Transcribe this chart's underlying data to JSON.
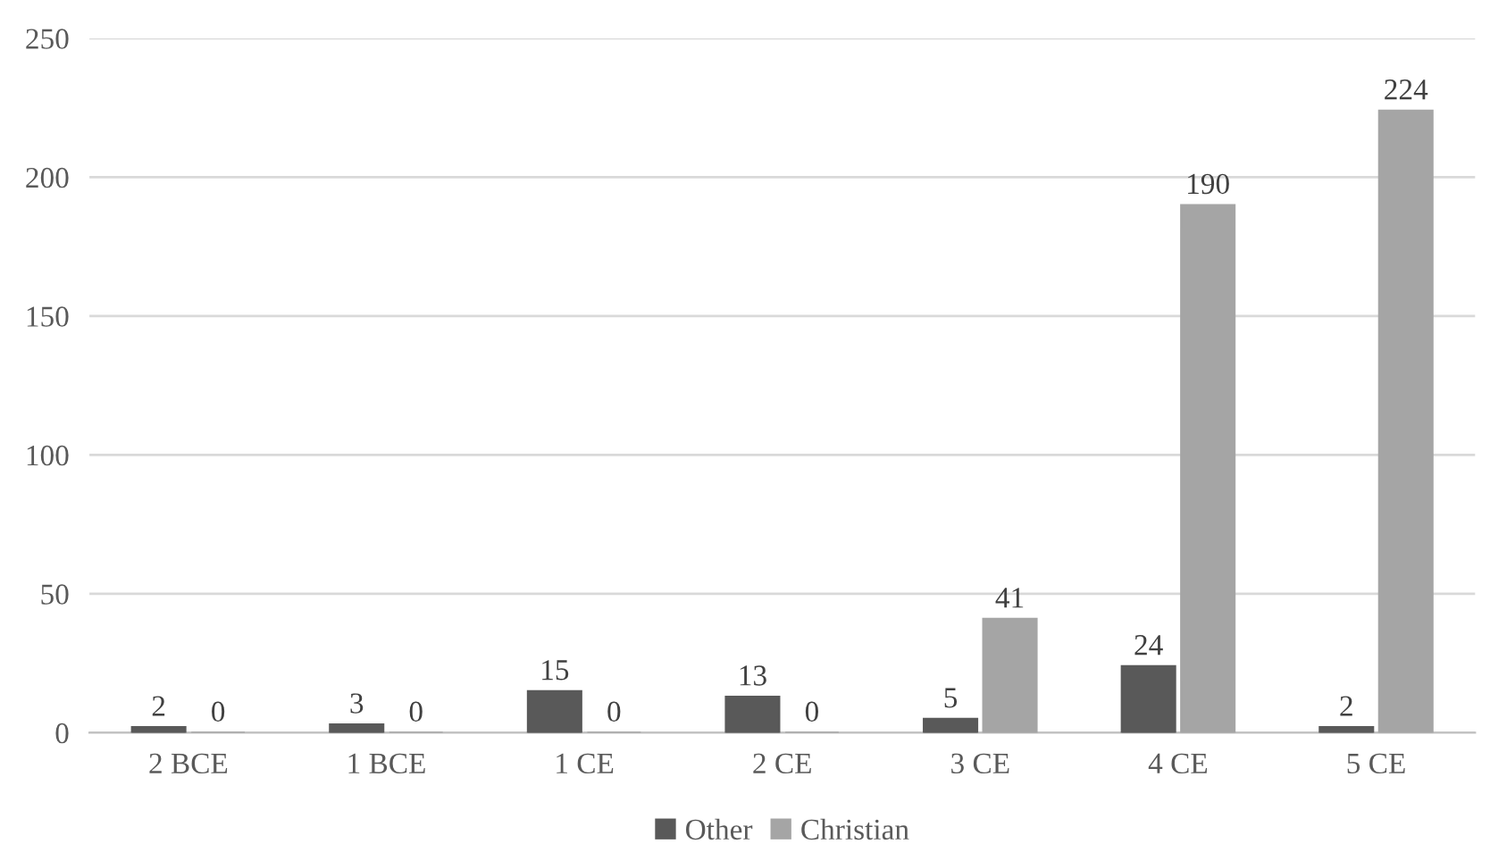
{
  "chart_data": {
    "type": "bar",
    "categories": [
      "2 BCE",
      "1 BCE",
      "1 CE",
      "2 CE",
      "3 CE",
      "4 CE",
      "5 CE"
    ],
    "series": [
      {
        "name": "Other",
        "color": "#595959",
        "values": [
          2,
          3,
          15,
          13,
          5,
          24,
          2
        ]
      },
      {
        "name": "Christian",
        "color": "#a5a5a5",
        "values": [
          0,
          0,
          0,
          0,
          41,
          190,
          224
        ]
      }
    ],
    "ylim": [
      0,
      250
    ],
    "yticks": [
      0,
      50,
      100,
      150,
      200,
      250
    ],
    "grid": "y",
    "legend": "bottom",
    "data_labels": true
  }
}
